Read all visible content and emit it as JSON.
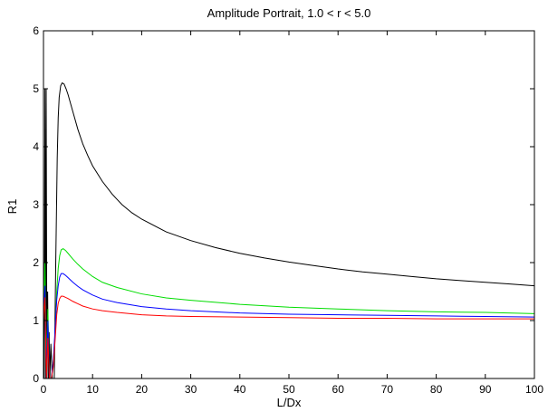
{
  "chart_data": {
    "type": "line",
    "title": "Amplitude Portrait, 1.0 < r < 5.0",
    "xlabel": "L/Dx",
    "ylabel": "R1",
    "xlim": [
      0,
      100
    ],
    "ylim": [
      0,
      6
    ],
    "xticks": [
      0,
      10,
      20,
      30,
      40,
      50,
      60,
      70,
      80,
      90,
      100
    ],
    "yticks": [
      0,
      1,
      2,
      3,
      4,
      5,
      6
    ],
    "grid": false,
    "legend": "none",
    "series": [
      {
        "color": "#000000",
        "x": [
          0.15,
          0.3,
          0.45,
          0.55,
          0.7,
          0.85,
          1.0,
          1.15,
          1.3,
          1.5,
          1.8,
          2.2,
          2.5,
          2.8,
          3.0,
          3.2,
          3.5,
          3.8,
          4.2,
          4.6,
          5.0,
          5.5,
          6.0,
          7.0,
          8.0,
          9.0,
          10,
          12,
          14,
          16,
          18,
          20,
          25,
          30,
          35,
          40,
          45,
          50,
          55,
          60,
          65,
          70,
          75,
          80,
          85,
          90,
          95,
          100
        ],
        "y": [
          0.0,
          5.0,
          0.0,
          5.0,
          0.0,
          1.5,
          0.0,
          0.8,
          0.0,
          0.6,
          0.0,
          0.0,
          2.0,
          3.8,
          4.5,
          4.85,
          5.05,
          5.1,
          5.08,
          5.0,
          4.9,
          4.75,
          4.6,
          4.3,
          4.05,
          3.85,
          3.67,
          3.4,
          3.18,
          3.0,
          2.86,
          2.75,
          2.53,
          2.38,
          2.26,
          2.16,
          2.08,
          2.01,
          1.95,
          1.89,
          1.84,
          1.8,
          1.76,
          1.72,
          1.69,
          1.66,
          1.63,
          1.6
        ]
      },
      {
        "color": "#00dd00",
        "x": [
          0.0,
          0.3,
          0.6,
          0.9,
          1.2,
          1.6,
          2.0,
          2.4,
          2.7,
          3.0,
          3.3,
          3.6,
          4.0,
          4.5,
          5.0,
          6.0,
          7.0,
          8.0,
          10,
          12,
          15,
          20,
          25,
          30,
          40,
          50,
          60,
          70,
          80,
          90,
          100
        ],
        "y": [
          0.95,
          2.0,
          0.0,
          1.2,
          0.0,
          0.0,
          0.3,
          0.8,
          1.5,
          1.9,
          2.12,
          2.22,
          2.24,
          2.21,
          2.16,
          2.06,
          1.97,
          1.89,
          1.76,
          1.66,
          1.57,
          1.46,
          1.39,
          1.35,
          1.28,
          1.23,
          1.2,
          1.17,
          1.15,
          1.14,
          1.12
        ]
      },
      {
        "color": "#0000ff",
        "x": [
          0.0,
          0.3,
          0.6,
          0.9,
          1.2,
          1.6,
          2.0,
          2.4,
          2.7,
          3.0,
          3.3,
          3.6,
          4.0,
          4.5,
          5.0,
          6.0,
          7.0,
          8.0,
          10,
          12,
          15,
          20,
          25,
          30,
          40,
          50,
          60,
          70,
          80,
          90,
          100
        ],
        "y": [
          1.0,
          1.6,
          0.0,
          1.0,
          0.0,
          0.0,
          0.3,
          0.9,
          1.35,
          1.6,
          1.75,
          1.81,
          1.81,
          1.78,
          1.74,
          1.66,
          1.59,
          1.53,
          1.44,
          1.37,
          1.31,
          1.24,
          1.2,
          1.17,
          1.13,
          1.11,
          1.1,
          1.09,
          1.08,
          1.07,
          1.06
        ]
      },
      {
        "color": "#ff0000",
        "x": [
          0.0,
          0.3,
          0.6,
          0.9,
          1.2,
          1.6,
          2.0,
          2.4,
          2.7,
          3.0,
          3.3,
          3.6,
          4.0,
          4.5,
          5.0,
          6.0,
          7.0,
          8.0,
          10,
          12,
          15,
          20,
          25,
          30,
          40,
          50,
          60,
          70,
          80,
          90,
          100
        ],
        "y": [
          1.0,
          1.4,
          0.0,
          0.7,
          0.0,
          0.0,
          0.2,
          0.7,
          1.1,
          1.3,
          1.38,
          1.42,
          1.42,
          1.4,
          1.38,
          1.33,
          1.29,
          1.25,
          1.2,
          1.17,
          1.14,
          1.1,
          1.08,
          1.07,
          1.06,
          1.05,
          1.04,
          1.04,
          1.03,
          1.03,
          1.03
        ]
      }
    ]
  }
}
